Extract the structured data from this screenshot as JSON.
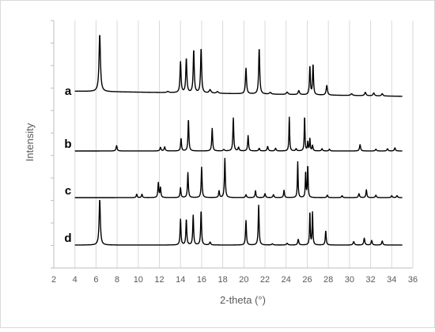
{
  "chart_data": {
    "type": "line",
    "title": "",
    "xlabel": "2-theta (°)",
    "ylabel": "Intensity",
    "xlim": [
      2,
      36
    ],
    "x_ticks": [
      2,
      4,
      6,
      8,
      10,
      12,
      14,
      16,
      18,
      20,
      22,
      24,
      26,
      28,
      30,
      32,
      34,
      36
    ],
    "x_range_plotted": [
      4,
      35
    ],
    "grid": "vertical",
    "legend": "none",
    "line_color": "#000000",
    "series": [
      {
        "name": "a",
        "baseline_start": 0.12,
        "baseline_end": 0.03,
        "peaks": [
          [
            6.35,
            1.0,
            0.08
          ],
          [
            12.8,
            0.02,
            0.1
          ],
          [
            14.0,
            0.54,
            0.06
          ],
          [
            14.55,
            0.6,
            0.06
          ],
          [
            15.25,
            0.75,
            0.06
          ],
          [
            15.95,
            0.78,
            0.06
          ],
          [
            16.8,
            0.06,
            0.1
          ],
          [
            17.5,
            0.03,
            0.1
          ],
          [
            20.2,
            0.45,
            0.06
          ],
          [
            21.45,
            0.8,
            0.06
          ],
          [
            22.5,
            0.03,
            0.1
          ],
          [
            24.1,
            0.04,
            0.1
          ],
          [
            25.2,
            0.07,
            0.08
          ],
          [
            26.25,
            0.5,
            0.05
          ],
          [
            26.55,
            0.53,
            0.05
          ],
          [
            27.85,
            0.17,
            0.07
          ],
          [
            30.2,
            0.03,
            0.1
          ],
          [
            31.5,
            0.06,
            0.08
          ],
          [
            32.3,
            0.05,
            0.08
          ],
          [
            33.1,
            0.04,
            0.08
          ]
        ]
      },
      {
        "name": "b",
        "baseline_start": 0.0,
        "baseline_end": 0.0,
        "peaks": [
          [
            7.95,
            0.12,
            0.06
          ],
          [
            12.1,
            0.08,
            0.06
          ],
          [
            12.5,
            0.09,
            0.06
          ],
          [
            14.05,
            0.28,
            0.05
          ],
          [
            14.75,
            0.7,
            0.05
          ],
          [
            17.0,
            0.5,
            0.05
          ],
          [
            18.1,
            0.03,
            0.08
          ],
          [
            19.0,
            0.73,
            0.05
          ],
          [
            19.5,
            0.08,
            0.06
          ],
          [
            20.4,
            0.34,
            0.05
          ],
          [
            21.45,
            0.06,
            0.06
          ],
          [
            22.25,
            0.1,
            0.06
          ],
          [
            23.0,
            0.06,
            0.06
          ],
          [
            24.3,
            0.75,
            0.04
          ],
          [
            24.95,
            0.05,
            0.06
          ],
          [
            25.75,
            0.77,
            0.04
          ],
          [
            26.05,
            0.2,
            0.04
          ],
          [
            26.25,
            0.28,
            0.04
          ],
          [
            26.5,
            0.12,
            0.05
          ],
          [
            27.4,
            0.05,
            0.06
          ],
          [
            28.1,
            0.04,
            0.06
          ],
          [
            31.0,
            0.14,
            0.06
          ],
          [
            32.5,
            0.04,
            0.06
          ],
          [
            33.6,
            0.05,
            0.06
          ],
          [
            34.3,
            0.07,
            0.06
          ]
        ]
      },
      {
        "name": "c",
        "baseline_start": 0.0,
        "baseline_end": 0.0,
        "peaks": [
          [
            9.85,
            0.07,
            0.05
          ],
          [
            10.35,
            0.07,
            0.05
          ],
          [
            11.9,
            0.3,
            0.05
          ],
          [
            12.1,
            0.2,
            0.05
          ],
          [
            14.0,
            0.2,
            0.05
          ],
          [
            14.7,
            0.51,
            0.05
          ],
          [
            16.0,
            0.62,
            0.05
          ],
          [
            17.65,
            0.14,
            0.05
          ],
          [
            18.2,
            0.8,
            0.05
          ],
          [
            20.2,
            0.06,
            0.06
          ],
          [
            21.1,
            0.14,
            0.05
          ],
          [
            22.0,
            0.08,
            0.06
          ],
          [
            22.8,
            0.06,
            0.06
          ],
          [
            23.8,
            0.15,
            0.05
          ],
          [
            25.1,
            0.73,
            0.04
          ],
          [
            25.85,
            0.52,
            0.04
          ],
          [
            26.05,
            0.65,
            0.04
          ],
          [
            27.9,
            0.05,
            0.06
          ],
          [
            29.3,
            0.04,
            0.06
          ],
          [
            30.9,
            0.08,
            0.06
          ],
          [
            31.6,
            0.16,
            0.05
          ],
          [
            32.5,
            0.05,
            0.06
          ],
          [
            34.0,
            0.04,
            0.06
          ],
          [
            34.5,
            0.04,
            0.06
          ]
        ]
      },
      {
        "name": "d",
        "baseline_start": 0.0,
        "baseline_end": 0.0,
        "peaks": [
          [
            6.35,
            0.8,
            0.07
          ],
          [
            14.0,
            0.45,
            0.05
          ],
          [
            14.55,
            0.45,
            0.05
          ],
          [
            15.2,
            0.52,
            0.05
          ],
          [
            15.95,
            0.6,
            0.05
          ],
          [
            16.8,
            0.05,
            0.07
          ],
          [
            20.2,
            0.43,
            0.05
          ],
          [
            21.4,
            0.7,
            0.05
          ],
          [
            22.7,
            0.02,
            0.08
          ],
          [
            24.1,
            0.03,
            0.08
          ],
          [
            25.15,
            0.1,
            0.06
          ],
          [
            26.25,
            0.58,
            0.04
          ],
          [
            26.5,
            0.57,
            0.04
          ],
          [
            27.75,
            0.25,
            0.05
          ],
          [
            30.4,
            0.06,
            0.07
          ],
          [
            31.4,
            0.12,
            0.06
          ],
          [
            32.1,
            0.08,
            0.06
          ],
          [
            33.1,
            0.07,
            0.06
          ]
        ]
      }
    ]
  }
}
